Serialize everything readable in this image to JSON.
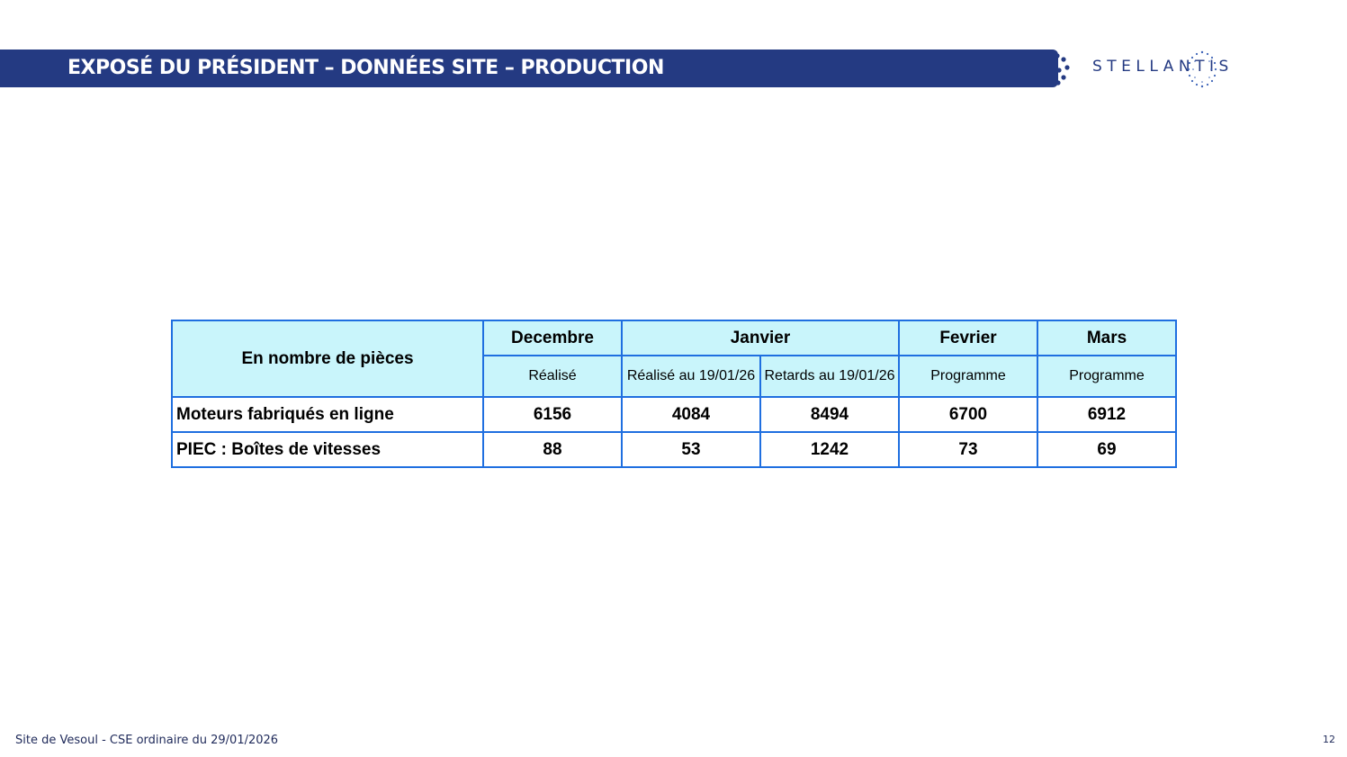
{
  "header": {
    "title": "EXPOSÉ DU PRÉSIDENT – DONNÉES SITE – PRODUCTION",
    "logo_text": "STELLANTIS",
    "band_color": "#243a82"
  },
  "table": {
    "corner_label": "En nombre de pièces",
    "months": {
      "decembre": "Decembre",
      "janvier": "Janvier",
      "fevrier": "Fevrier",
      "mars": "Mars"
    },
    "subheaders": {
      "decembre": "Réalisé",
      "janvier_realise": "Réalisé au 19/01/26",
      "janvier_retards": "Retards au 19/01/26",
      "fevrier": "Programme",
      "mars": "Programme"
    },
    "rows": [
      {
        "label": "Moteurs fabriqués en ligne",
        "values": [
          "6156",
          "4084",
          "8494",
          "6700",
          "6912"
        ]
      },
      {
        "label": "PIEC : Boîtes de vitesses",
        "values": [
          "88",
          "53",
          "1242",
          "73",
          "69"
        ]
      }
    ],
    "header_bg": "#c9f5fb",
    "border_color": "#1f6fe0"
  },
  "footer": {
    "left": "Site de Vesoul - CSE ordinaire du 29/01/2026",
    "page_number": "12"
  }
}
